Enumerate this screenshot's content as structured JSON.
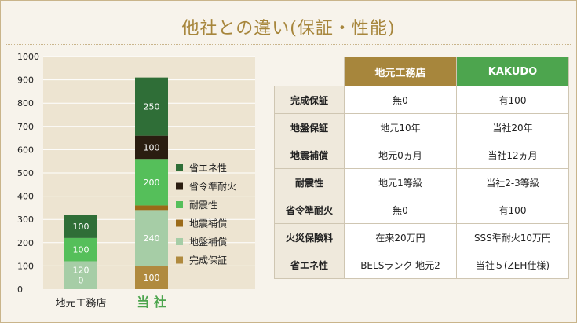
{
  "title": "他社との違い(保証・性能)",
  "chart_data": {
    "type": "bar",
    "stacked": true,
    "categories": [
      "地元工務店",
      "当 社"
    ],
    "ylim": [
      0,
      1000
    ],
    "yticks": [
      0,
      100,
      200,
      300,
      400,
      500,
      600,
      700,
      800,
      900,
      1000
    ],
    "grid": true,
    "legend_position": "right",
    "series": [
      {
        "name": "完成保証",
        "color": "#b08a3e",
        "values": [
          0,
          100
        ]
      },
      {
        "name": "地盤補償",
        "color": "#a6cda6",
        "values": [
          120,
          240
        ]
      },
      {
        "name": "地震補償",
        "color": "#9b6a18",
        "values": [
          0,
          20
        ]
      },
      {
        "name": "耐震性",
        "color": "#55bf5a",
        "values": [
          100,
          200
        ]
      },
      {
        "name": "省令準耐火",
        "color": "#2a1d10",
        "values": [
          0,
          100
        ]
      },
      {
        "name": "省エネ性",
        "color": "#2f6e37",
        "values": [
          100,
          250
        ]
      }
    ],
    "data_labels": [
      [
        "",
        "120\n0",
        "",
        "100",
        "",
        "100"
      ],
      [
        "100",
        "240",
        "",
        "200",
        "100",
        "250"
      ]
    ],
    "category_colors": [
      "#222222",
      "#4da54e"
    ]
  },
  "table": {
    "columns": [
      "地元工務店",
      "KAKUDO"
    ],
    "rows": [
      {
        "label": "完成保証",
        "values": [
          "無0",
          "有100"
        ]
      },
      {
        "label": "地盤保証",
        "values": [
          "地元10年",
          "当社20年"
        ]
      },
      {
        "label": "地震補償",
        "values": [
          "地元0ヵ月",
          "当社12ヵ月"
        ]
      },
      {
        "label": "耐震性",
        "values": [
          "地元1等級",
          "当社2-3等級"
        ]
      },
      {
        "label": "省令準耐火",
        "values": [
          "無0",
          "有100"
        ]
      },
      {
        "label": "火災保険料",
        "values": [
          "在来20万円",
          "SSS準耐火10万円"
        ]
      },
      {
        "label": "省エネ性",
        "values": [
          "BELSランク 地元2",
          "当社５(ZEH仕様)"
        ]
      }
    ]
  },
  "colors": {
    "gold": "#a7863c",
    "green": "#4da54e",
    "plot_bg": "#ede4d1",
    "grid": "#ffffff"
  }
}
